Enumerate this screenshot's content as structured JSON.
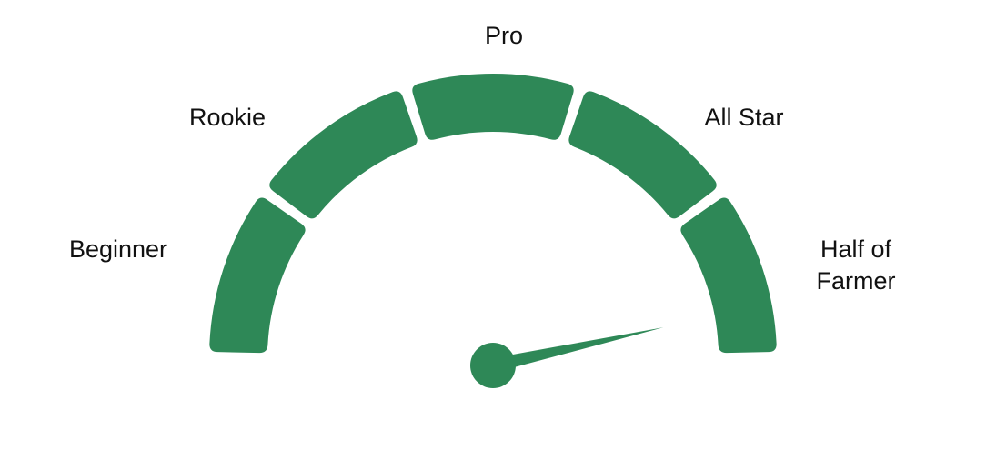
{
  "gauge": {
    "color": "#2e8857",
    "segments": [
      {
        "label_lines": [
          "Beginner"
        ]
      },
      {
        "label_lines": [
          "Rookie"
        ]
      },
      {
        "label_lines": [
          "Pro"
        ]
      },
      {
        "label_lines": [
          "All Star"
        ]
      },
      {
        "label_lines": [
          "Half of",
          "Farmer"
        ]
      }
    ],
    "needle": {
      "level_fraction": 0.93
    }
  }
}
